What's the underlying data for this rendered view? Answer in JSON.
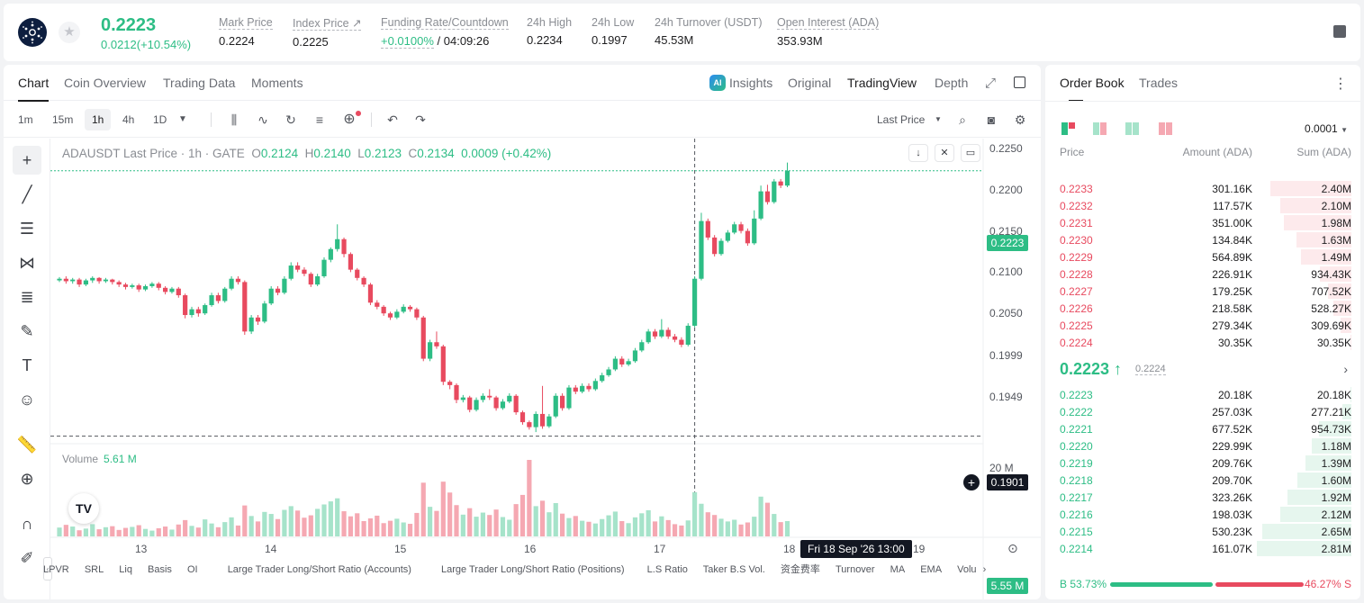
{
  "header": {
    "last_price": "0.2223",
    "change": "0.0212(+10.54%)",
    "stats": [
      {
        "label": "Mark Price",
        "value": "0.2224"
      },
      {
        "label": "Index Price ↗",
        "value": "0.2225"
      },
      {
        "label": "Funding Rate/Countdown",
        "value_a": "+0.0100%",
        "value_b": " / 04:09:26"
      },
      {
        "label": "24h High",
        "value": "0.2234"
      },
      {
        "label": "24h Low",
        "value": "0.1997"
      },
      {
        "label": "24h Turnover (USDT)",
        "value": "45.53M"
      },
      {
        "label": "Open Interest (ADA)",
        "value": "353.93M"
      }
    ]
  },
  "chart_tabs": [
    "Chart",
    "Coin Overview",
    "Trading Data",
    "Moments"
  ],
  "chart_right_tabs": [
    "Insights",
    "Original",
    "TradingView",
    "Depth"
  ],
  "ai_badge": "AI",
  "timeframes": [
    "1m",
    "15m",
    "1h",
    "4h",
    "1D"
  ],
  "price_type": "Last Price",
  "legend": {
    "symbol": "ADAUSDT Last Price · 1h · GATE",
    "o": "0.2124",
    "h": "0.2140",
    "l": "0.2123",
    "c": "0.2134",
    "chg": "0.0009 (+0.42%)"
  },
  "volume_legend": {
    "label": "Volume",
    "value": "5.61 M"
  },
  "crosshair": {
    "price": "0.1901",
    "time": "Fri 18 Sep '26   13:00"
  },
  "current_price_tag": "0.2223",
  "volume_tag": "5.55 M",
  "indicators": [
    "LPVR",
    "SRL",
    "Liq",
    "Basis",
    "OI",
    "Large Trader Long/Short Ratio (Accounts)",
    "Large Trader Long/Short Ratio (Positions)",
    "L.S Ratio",
    "Taker B.S Vol.",
    "资金费率",
    "Turnover",
    "MA",
    "EMA",
    "Volu"
  ],
  "chart_data": {
    "type": "candlestick",
    "title": "ADAUSDT Last Price · 1h · GATE",
    "y_ticks": [
      "0.2250",
      "0.2200",
      "0.2150",
      "0.2100",
      "0.2050",
      "0.1999",
      "0.1949"
    ],
    "ylim": [
      0.1893,
      0.2262
    ],
    "x_ticks": [
      "13",
      "14",
      "15",
      "16",
      "17",
      "18",
      "19"
    ],
    "volume_ticks": [
      "20 M"
    ],
    "volume_max": 27,
    "candles": [
      [
        0.209,
        0.2092,
        0.2088,
        0.2094
      ],
      [
        0.2092,
        0.2089,
        0.2086,
        0.2095
      ],
      [
        0.2089,
        0.2091,
        0.2086,
        0.2093
      ],
      [
        0.2091,
        0.2085,
        0.2082,
        0.2093
      ],
      [
        0.2085,
        0.209,
        0.2083,
        0.2092
      ],
      [
        0.209,
        0.2093,
        0.2087,
        0.2095
      ],
      [
        0.2093,
        0.2089,
        0.2086,
        0.2094
      ],
      [
        0.2089,
        0.2091,
        0.2087,
        0.2093
      ],
      [
        0.2091,
        0.2088,
        0.2085,
        0.2092
      ],
      [
        0.2088,
        0.2085,
        0.2082,
        0.209
      ],
      [
        0.2085,
        0.2082,
        0.2079,
        0.2087
      ],
      [
        0.2082,
        0.2084,
        0.208,
        0.2086
      ],
      [
        0.2084,
        0.2079,
        0.2076,
        0.2086
      ],
      [
        0.2079,
        0.2083,
        0.2077,
        0.2085
      ],
      [
        0.2083,
        0.2086,
        0.2081,
        0.2088
      ],
      [
        0.2086,
        0.2081,
        0.2078,
        0.2088
      ],
      [
        0.2081,
        0.2076,
        0.2073,
        0.2083
      ],
      [
        0.2076,
        0.208,
        0.2074,
        0.2082
      ],
      [
        0.208,
        0.2072,
        0.2069,
        0.2082
      ],
      [
        0.2072,
        0.2048,
        0.2044,
        0.2074
      ],
      [
        0.2048,
        0.2055,
        0.2045,
        0.2058
      ],
      [
        0.2055,
        0.205,
        0.2046,
        0.2058
      ],
      [
        0.205,
        0.206,
        0.2048,
        0.2062
      ],
      [
        0.206,
        0.2072,
        0.2058,
        0.2075
      ],
      [
        0.2072,
        0.2065,
        0.2062,
        0.2075
      ],
      [
        0.2065,
        0.208,
        0.2063,
        0.2082
      ],
      [
        0.208,
        0.2092,
        0.2078,
        0.2095
      ],
      [
        0.2092,
        0.2088,
        0.2085,
        0.2095
      ],
      [
        0.2088,
        0.2028,
        0.2024,
        0.209
      ],
      [
        0.2028,
        0.2045,
        0.2025,
        0.2048
      ],
      [
        0.2045,
        0.204,
        0.2036,
        0.2048
      ],
      [
        0.204,
        0.2062,
        0.2038,
        0.2065
      ],
      [
        0.2062,
        0.208,
        0.206,
        0.2083
      ],
      [
        0.208,
        0.2075,
        0.2072,
        0.2083
      ],
      [
        0.2075,
        0.2092,
        0.2073,
        0.2095
      ],
      [
        0.2092,
        0.2108,
        0.209,
        0.2112
      ],
      [
        0.2108,
        0.2103,
        0.21,
        0.2112
      ],
      [
        0.2103,
        0.2098,
        0.2095,
        0.2106
      ],
      [
        0.2098,
        0.2085,
        0.2082,
        0.21
      ],
      [
        0.2085,
        0.2095,
        0.2083,
        0.2098
      ],
      [
        0.2095,
        0.2115,
        0.2093,
        0.2118
      ],
      [
        0.2115,
        0.2128,
        0.2112,
        0.213
      ],
      [
        0.2128,
        0.214,
        0.2125,
        0.2158
      ],
      [
        0.214,
        0.2122,
        0.2118,
        0.2142
      ],
      [
        0.2122,
        0.2103,
        0.21,
        0.2124
      ],
      [
        0.2103,
        0.2093,
        0.209,
        0.2105
      ],
      [
        0.2093,
        0.2085,
        0.2082,
        0.2095
      ],
      [
        0.2085,
        0.2063,
        0.206,
        0.2087
      ],
      [
        0.2063,
        0.2058,
        0.2055,
        0.2066
      ],
      [
        0.2058,
        0.205,
        0.2047,
        0.206
      ],
      [
        0.205,
        0.2045,
        0.2042,
        0.2052
      ],
      [
        0.2045,
        0.2052,
        0.2043,
        0.2055
      ],
      [
        0.2052,
        0.2058,
        0.205,
        0.2061
      ],
      [
        0.2058,
        0.2055,
        0.2052,
        0.206
      ],
      [
        0.2055,
        0.2045,
        0.2042,
        0.2057
      ],
      [
        0.2045,
        0.1995,
        0.1992,
        0.2047
      ],
      [
        0.1995,
        0.2015,
        0.1992,
        0.2018
      ],
      [
        0.2015,
        0.201,
        0.2007,
        0.2028
      ],
      [
        0.201,
        0.1967,
        0.1963,
        0.2012
      ],
      [
        0.1967,
        0.1963,
        0.1958,
        0.1969
      ],
      [
        0.1963,
        0.1945,
        0.1941,
        0.1965
      ],
      [
        0.1945,
        0.1948,
        0.1942,
        0.1951
      ],
      [
        0.1948,
        0.1933,
        0.193,
        0.195
      ],
      [
        0.1933,
        0.1945,
        0.1931,
        0.1948
      ],
      [
        0.1945,
        0.195,
        0.1942,
        0.1953
      ],
      [
        0.195,
        0.1948,
        0.1945,
        0.1958
      ],
      [
        0.1948,
        0.1935,
        0.1932,
        0.195
      ],
      [
        0.1935,
        0.1943,
        0.1933,
        0.1946
      ],
      [
        0.1943,
        0.195,
        0.1941,
        0.1953
      ],
      [
        0.195,
        0.193,
        0.1927,
        0.1952
      ],
      [
        0.193,
        0.1918,
        0.1915,
        0.1932
      ],
      [
        0.1918,
        0.1912,
        0.1909,
        0.192
      ],
      [
        0.1912,
        0.1928,
        0.1906,
        0.1931
      ],
      [
        0.1928,
        0.1913,
        0.191,
        0.1962
      ],
      [
        0.1913,
        0.1925,
        0.1911,
        0.1928
      ],
      [
        0.1925,
        0.195,
        0.1923,
        0.1953
      ],
      [
        0.195,
        0.1935,
        0.1932,
        0.1953
      ],
      [
        0.1935,
        0.196,
        0.1933,
        0.1963
      ],
      [
        0.196,
        0.1955,
        0.1952,
        0.1963
      ],
      [
        0.1955,
        0.1962,
        0.1953,
        0.1965
      ],
      [
        0.1962,
        0.1958,
        0.1955,
        0.1965
      ],
      [
        0.1958,
        0.1968,
        0.1956,
        0.1971
      ],
      [
        0.1968,
        0.1975,
        0.1966,
        0.1978
      ],
      [
        0.1975,
        0.1982,
        0.1973,
        0.1985
      ],
      [
        0.1982,
        0.1995,
        0.198,
        0.1998
      ],
      [
        0.1995,
        0.1988,
        0.1985,
        0.1998
      ],
      [
        0.1988,
        0.1992,
        0.1986,
        0.1995
      ],
      [
        0.1992,
        0.2005,
        0.199,
        0.2008
      ],
      [
        0.2005,
        0.2015,
        0.2003,
        0.2018
      ],
      [
        0.2015,
        0.2028,
        0.2013,
        0.2031
      ],
      [
        0.2028,
        0.2022,
        0.2019,
        0.2031
      ],
      [
        0.2022,
        0.203,
        0.202,
        0.2043
      ],
      [
        0.203,
        0.2022,
        0.2019,
        0.2033
      ],
      [
        0.2022,
        0.2018,
        0.2015,
        0.2025
      ],
      [
        0.2018,
        0.2012,
        0.2009,
        0.2021
      ],
      [
        0.2012,
        0.2035,
        0.201,
        0.2038
      ],
      [
        0.2035,
        0.2092,
        0.2033,
        0.2095
      ],
      [
        0.2092,
        0.2162,
        0.209,
        0.2172
      ],
      [
        0.2162,
        0.2142,
        0.2139,
        0.2165
      ],
      [
        0.2142,
        0.2122,
        0.2119,
        0.2145
      ],
      [
        0.2122,
        0.2138,
        0.212,
        0.2141
      ],
      [
        0.2138,
        0.2148,
        0.2136,
        0.2151
      ],
      [
        0.2148,
        0.2158,
        0.2146,
        0.2161
      ],
      [
        0.2158,
        0.215,
        0.2147,
        0.2161
      ],
      [
        0.215,
        0.2135,
        0.2132,
        0.2153
      ],
      [
        0.2135,
        0.2165,
        0.2133,
        0.2175
      ],
      [
        0.2165,
        0.2198,
        0.2163,
        0.2205
      ],
      [
        0.2198,
        0.2185,
        0.2182,
        0.2206
      ],
      [
        0.2185,
        0.221,
        0.2183,
        0.2213
      ],
      [
        0.221,
        0.2205,
        0.2202,
        0.2213
      ],
      [
        0.2205,
        0.2223,
        0.2203,
        0.2233
      ]
    ],
    "volumes": [
      2.6,
      3.4,
      2.9,
      1.8,
      2.3,
      3.6,
      2.1,
      2.7,
      3.0,
      1.9,
      2.5,
      2.8,
      3.3,
      2.2,
      1.7,
      2.4,
      2.9,
      2.0,
      3.5,
      4.8,
      3.1,
      2.6,
      5.0,
      3.8,
      2.7,
      4.2,
      5.6,
      3.2,
      9.1,
      6.0,
      4.4,
      7.2,
      6.6,
      5.1,
      7.8,
      8.9,
      7.6,
      5.5,
      6.2,
      8.1,
      9.4,
      10.3,
      11.2,
      7.4,
      5.9,
      6.8,
      4.5,
      5.3,
      6.1,
      3.9,
      4.6,
      5.2,
      4.1,
      3.7,
      6.9,
      15.8,
      8.7,
      7.5,
      16.1,
      12.9,
      9.2,
      6.4,
      8.3,
      5.8,
      7.0,
      6.3,
      7.9,
      5.7,
      4.9,
      9.5,
      12.2,
      22.5,
      8.9,
      10.5,
      7.1,
      9.8,
      6.7,
      5.4,
      6.0,
      4.6,
      4.3,
      3.8,
      5.1,
      6.2,
      7.3,
      4.5,
      3.9,
      5.6,
      6.8,
      7.7,
      4.4,
      5.9,
      4.8,
      3.6,
      3.2,
      4.7,
      13.0,
      9.6,
      7.1,
      6.3,
      5.2,
      4.4,
      4.9,
      3.5,
      4.1,
      5.8,
      11.7,
      9.9,
      6.6,
      4.2,
      4.5
    ]
  },
  "order_book": {
    "tabs": [
      "Order Book",
      "Trades"
    ],
    "precision": "0.0001",
    "cols": [
      "Price",
      "Amount (ADA)",
      "Sum (ADA)"
    ],
    "asks": [
      {
        "p": "0.2233",
        "a": "301.16K",
        "s": "2.40M",
        "d": 0.86
      },
      {
        "p": "0.2232",
        "a": "117.57K",
        "s": "2.10M",
        "d": 0.75
      },
      {
        "p": "0.2231",
        "a": "351.00K",
        "s": "1.98M",
        "d": 0.71
      },
      {
        "p": "0.2230",
        "a": "134.84K",
        "s": "1.63M",
        "d": 0.58
      },
      {
        "p": "0.2229",
        "a": "564.89K",
        "s": "1.49M",
        "d": 0.53
      },
      {
        "p": "0.2228",
        "a": "226.91K",
        "s": "934.43K",
        "d": 0.33
      },
      {
        "p": "0.2227",
        "a": "179.25K",
        "s": "707.52K",
        "d": 0.25
      },
      {
        "p": "0.2226",
        "a": "218.58K",
        "s": "528.27K",
        "d": 0.19
      },
      {
        "p": "0.2225",
        "a": "279.34K",
        "s": "309.69K",
        "d": 0.11
      },
      {
        "p": "0.2224",
        "a": "30.35K",
        "s": "30.35K",
        "d": 0.01
      }
    ],
    "mid": {
      "price": "0.2223 ↑",
      "mark": "0.2224"
    },
    "bids": [
      {
        "p": "0.2223",
        "a": "20.18K",
        "s": "20.18K",
        "d": 0.01
      },
      {
        "p": "0.2222",
        "a": "257.03K",
        "s": "277.21K",
        "d": 0.1
      },
      {
        "p": "0.2221",
        "a": "677.52K",
        "s": "954.73K",
        "d": 0.34
      },
      {
        "p": "0.2220",
        "a": "229.99K",
        "s": "1.18M",
        "d": 0.42
      },
      {
        "p": "0.2219",
        "a": "209.76K",
        "s": "1.39M",
        "d": 0.49
      },
      {
        "p": "0.2218",
        "a": "209.70K",
        "s": "1.60M",
        "d": 0.57
      },
      {
        "p": "0.2217",
        "a": "323.26K",
        "s": "1.92M",
        "d": 0.68
      },
      {
        "p": "0.2216",
        "a": "198.03K",
        "s": "2.12M",
        "d": 0.75
      },
      {
        "p": "0.2215",
        "a": "530.23K",
        "s": "2.65M",
        "d": 0.94
      },
      {
        "p": "0.2214",
        "a": "161.07K",
        "s": "2.81M",
        "d": 1.0
      }
    ],
    "ratio": {
      "buy": "B 53.73%",
      "sell": "46.27% S",
      "buy_fraction": 0.5373
    }
  },
  "colors": {
    "up": "#2dbd85",
    "down": "#e84a5f",
    "up_vol": "#a6e3ca",
    "down_vol": "#f5a8b2"
  }
}
